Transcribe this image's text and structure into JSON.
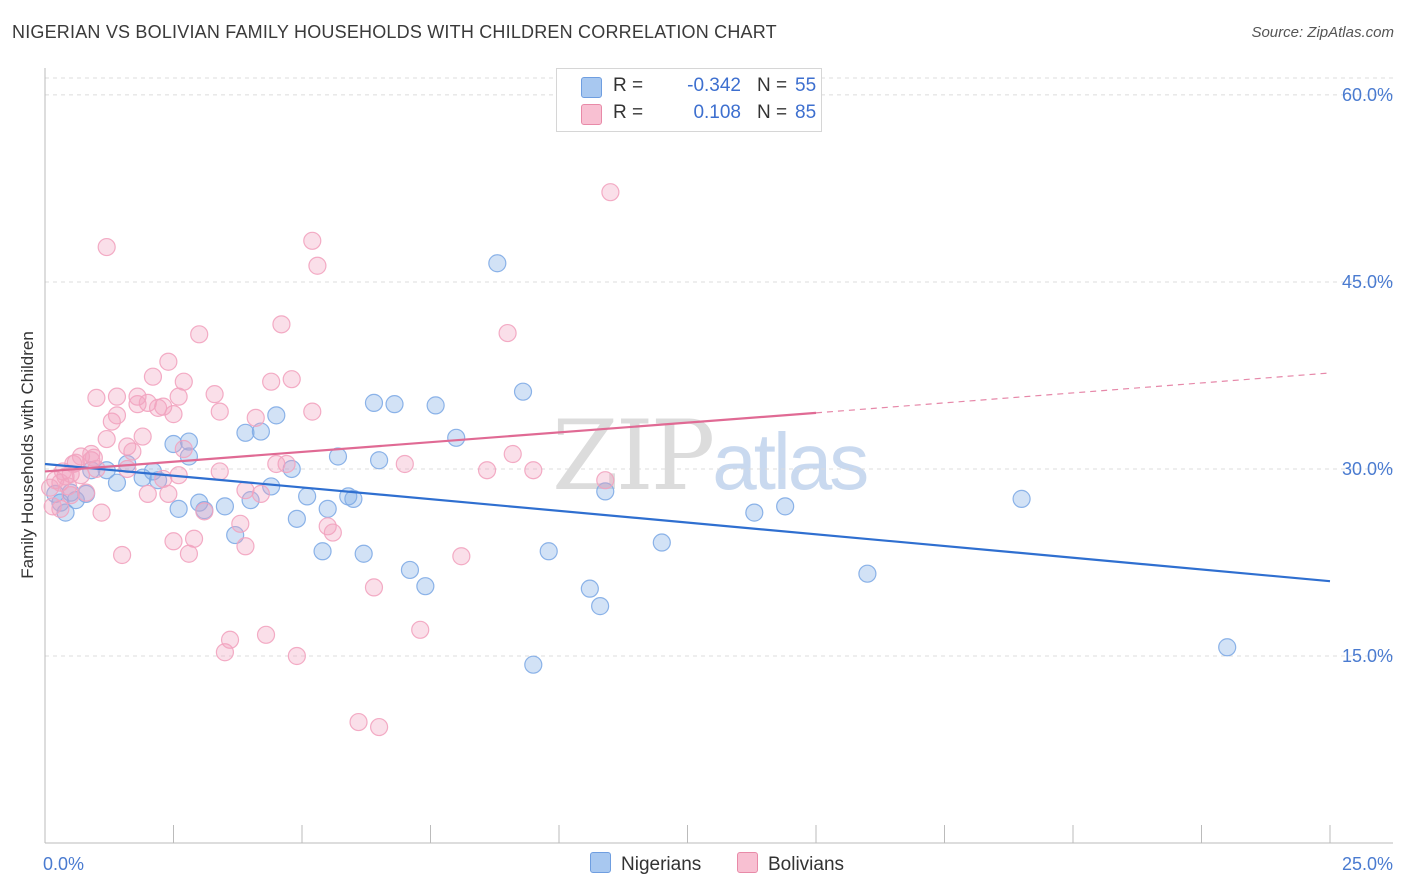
{
  "title": "NIGERIAN VS BOLIVIAN FAMILY HOUSEHOLDS WITH CHILDREN CORRELATION CHART",
  "source": "Source: ZipAtlas.com",
  "ylabel": "Family Households with Children",
  "watermark": {
    "zip": "ZIP",
    "atlas": "atlas"
  },
  "legend_top": [
    {
      "r_label": "R =",
      "r_value": "-0.342",
      "n_label": "N =",
      "n_value": "55",
      "color": "#a8c8f0",
      "border": "#6f9ee0"
    },
    {
      "r_label": "R =",
      "r_value": "0.108",
      "n_label": "N =",
      "n_value": "85",
      "color": "#f8c0d2",
      "border": "#e88aa8"
    }
  ],
  "legend_bottom": [
    {
      "label": "Nigerians",
      "color": "#a8c8f0",
      "border": "#6f9ee0"
    },
    {
      "label": "Bolivians",
      "color": "#f8c0d2",
      "border": "#e88aa8"
    }
  ],
  "chart_data": {
    "type": "scatter",
    "xlim": [
      0,
      25
    ],
    "ylim": [
      0,
      62
    ],
    "x_tick_labels": [
      "0.0%",
      "25.0%"
    ],
    "y_ticks": [
      15,
      30,
      45,
      60
    ],
    "y_tick_labels": [
      "15.0%",
      "30.0%",
      "45.0%",
      "60.0%"
    ],
    "grid": true,
    "series": [
      {
        "name": "Nigerians",
        "color": "#7fabe6",
        "trend_color": "#2f6fd0",
        "trend": {
          "x0": 0,
          "y0": 30.4,
          "x1": 25,
          "y1": 21.0
        },
        "points": [
          [
            0.2,
            28.0
          ],
          [
            0.3,
            27.3
          ],
          [
            0.4,
            26.5
          ],
          [
            0.5,
            28.1
          ],
          [
            0.6,
            27.5
          ],
          [
            0.8,
            28.0
          ],
          [
            0.9,
            29.9
          ],
          [
            1.2,
            29.9
          ],
          [
            1.4,
            28.9
          ],
          [
            1.6,
            30.4
          ],
          [
            1.9,
            29.3
          ],
          [
            2.1,
            29.8
          ],
          [
            2.2,
            29.1
          ],
          [
            2.5,
            32.0
          ],
          [
            2.6,
            26.8
          ],
          [
            2.8,
            32.2
          ],
          [
            2.8,
            31.0
          ],
          [
            3.0,
            27.3
          ],
          [
            3.1,
            26.7
          ],
          [
            3.5,
            27.0
          ],
          [
            3.7,
            24.7
          ],
          [
            3.9,
            32.9
          ],
          [
            4.0,
            27.5
          ],
          [
            4.2,
            33.0
          ],
          [
            4.4,
            28.6
          ],
          [
            4.5,
            34.3
          ],
          [
            4.8,
            30.0
          ],
          [
            4.9,
            26.0
          ],
          [
            5.1,
            27.8
          ],
          [
            5.4,
            23.4
          ],
          [
            5.5,
            26.8
          ],
          [
            5.7,
            31.0
          ],
          [
            5.9,
            27.8
          ],
          [
            6.0,
            27.6
          ],
          [
            6.2,
            23.2
          ],
          [
            6.4,
            35.3
          ],
          [
            6.5,
            30.7
          ],
          [
            6.8,
            35.2
          ],
          [
            7.1,
            21.9
          ],
          [
            7.4,
            20.6
          ],
          [
            7.6,
            35.1
          ],
          [
            8.0,
            32.5
          ],
          [
            8.8,
            46.5
          ],
          [
            9.3,
            36.2
          ],
          [
            9.5,
            14.3
          ],
          [
            9.8,
            23.4
          ],
          [
            10.6,
            20.4
          ],
          [
            10.8,
            19.0
          ],
          [
            10.9,
            28.2
          ],
          [
            12.0,
            24.1
          ],
          [
            13.8,
            26.5
          ],
          [
            14.4,
            27.0
          ],
          [
            16.0,
            21.6
          ],
          [
            19.0,
            27.6
          ],
          [
            23.0,
            15.7
          ]
        ]
      },
      {
        "name": "Bolivians",
        "color": "#f2a3bf",
        "trend_color": "#e06a94",
        "trend": {
          "x0": 0,
          "y0": 29.8,
          "x1": 15,
          "y1": 34.5
        },
        "trend_dashed": {
          "x0": 15,
          "y0": 34.5,
          "x1": 25,
          "y1": 37.7
        },
        "points": [
          [
            0.1,
            28.5
          ],
          [
            0.15,
            27.0
          ],
          [
            0.2,
            29.1
          ],
          [
            0.3,
            26.8
          ],
          [
            0.3,
            28.9
          ],
          [
            0.4,
            29.4
          ],
          [
            0.5,
            27.9
          ],
          [
            0.5,
            29.6
          ],
          [
            0.6,
            30.5
          ],
          [
            0.7,
            29.5
          ],
          [
            0.7,
            31.0
          ],
          [
            0.8,
            28.1
          ],
          [
            0.9,
            30.7
          ],
          [
            0.9,
            31.2
          ],
          [
            1.0,
            30.0
          ],
          [
            1.0,
            35.7
          ],
          [
            1.1,
            26.5
          ],
          [
            1.2,
            32.4
          ],
          [
            1.2,
            47.8
          ],
          [
            1.3,
            33.8
          ],
          [
            1.4,
            35.8
          ],
          [
            1.4,
            34.3
          ],
          [
            1.5,
            23.1
          ],
          [
            1.6,
            30.0
          ],
          [
            1.6,
            31.8
          ],
          [
            1.7,
            31.4
          ],
          [
            1.8,
            35.8
          ],
          [
            1.8,
            35.2
          ],
          [
            1.9,
            32.6
          ],
          [
            2.0,
            28.0
          ],
          [
            2.0,
            35.3
          ],
          [
            2.1,
            37.4
          ],
          [
            2.2,
            34.9
          ],
          [
            2.3,
            35.0
          ],
          [
            2.3,
            29.2
          ],
          [
            2.4,
            38.6
          ],
          [
            2.4,
            28.0
          ],
          [
            2.5,
            34.4
          ],
          [
            2.5,
            24.2
          ],
          [
            2.6,
            29.5
          ],
          [
            2.6,
            35.8
          ],
          [
            2.7,
            31.6
          ],
          [
            2.7,
            37.0
          ],
          [
            2.8,
            23.2
          ],
          [
            2.9,
            24.4
          ],
          [
            3.0,
            40.8
          ],
          [
            3.1,
            26.6
          ],
          [
            3.3,
            36.0
          ],
          [
            3.4,
            29.8
          ],
          [
            3.4,
            34.6
          ],
          [
            3.5,
            15.3
          ],
          [
            3.6,
            16.3
          ],
          [
            3.8,
            25.6
          ],
          [
            3.9,
            23.8
          ],
          [
            3.9,
            28.3
          ],
          [
            4.1,
            34.1
          ],
          [
            4.2,
            28.0
          ],
          [
            4.3,
            16.7
          ],
          [
            4.4,
            37.0
          ],
          [
            4.5,
            30.4
          ],
          [
            4.6,
            41.6
          ],
          [
            4.7,
            30.4
          ],
          [
            4.8,
            37.2
          ],
          [
            4.9,
            15.0
          ],
          [
            5.2,
            48.3
          ],
          [
            5.2,
            34.6
          ],
          [
            5.3,
            46.3
          ],
          [
            5.5,
            25.4
          ],
          [
            5.6,
            24.9
          ],
          [
            6.1,
            9.7
          ],
          [
            6.4,
            20.5
          ],
          [
            6.5,
            9.3
          ],
          [
            7.0,
            30.4
          ],
          [
            7.3,
            17.1
          ],
          [
            8.1,
            23.0
          ],
          [
            8.6,
            29.9
          ],
          [
            9.0,
            40.9
          ],
          [
            9.1,
            31.2
          ],
          [
            9.5,
            29.9
          ],
          [
            10.9,
            29.1
          ],
          [
            11.0,
            52.2
          ],
          [
            0.35,
            29.8
          ],
          [
            0.45,
            28.6
          ],
          [
            0.55,
            30.4
          ],
          [
            0.95,
            30.9
          ]
        ]
      }
    ]
  }
}
